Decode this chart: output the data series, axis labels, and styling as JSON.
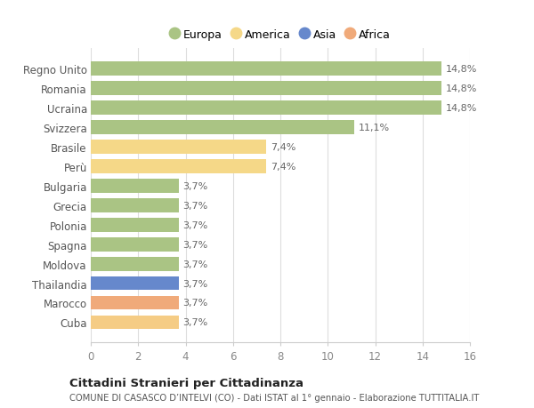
{
  "categories": [
    "Cuba",
    "Marocco",
    "Thailandia",
    "Moldova",
    "Spagna",
    "Polonia",
    "Grecia",
    "Bulgaria",
    "Perù",
    "Brasile",
    "Svizzera",
    "Ucraina",
    "Romania",
    "Regno Unito"
  ],
  "values": [
    3.7,
    3.7,
    3.7,
    3.7,
    3.7,
    3.7,
    3.7,
    3.7,
    7.4,
    7.4,
    11.1,
    14.8,
    14.8,
    14.8
  ],
  "colors": [
    "#f5cc85",
    "#f0aa7a",
    "#6688cc",
    "#aac484",
    "#aac484",
    "#aac484",
    "#aac484",
    "#aac484",
    "#f5d888",
    "#f5d888",
    "#aac484",
    "#aac484",
    "#aac484",
    "#aac484"
  ],
  "labels": [
    "3,7%",
    "3,7%",
    "3,7%",
    "3,7%",
    "3,7%",
    "3,7%",
    "3,7%",
    "3,7%",
    "7,4%",
    "7,4%",
    "11,1%",
    "14,8%",
    "14,8%",
    "14,8%"
  ],
  "legend": [
    {
      "label": "Europa",
      "color": "#aac484"
    },
    {
      "label": "America",
      "color": "#f5d888"
    },
    {
      "label": "Asia",
      "color": "#6688cc"
    },
    {
      "label": "Africa",
      "color": "#f0aa7a"
    }
  ],
  "title": "Cittadini Stranieri per Cittadinanza",
  "subtitle": "COMUNE DI CASASCO D’INTELVI (CO) - Dati ISTAT al 1° gennaio - Elaborazione TUTTITALIA.IT",
  "xlim": [
    0,
    16
  ],
  "xticks": [
    0,
    2,
    4,
    6,
    8,
    10,
    12,
    14,
    16
  ],
  "background_color": "#ffffff",
  "grid_color": "#dddddd"
}
